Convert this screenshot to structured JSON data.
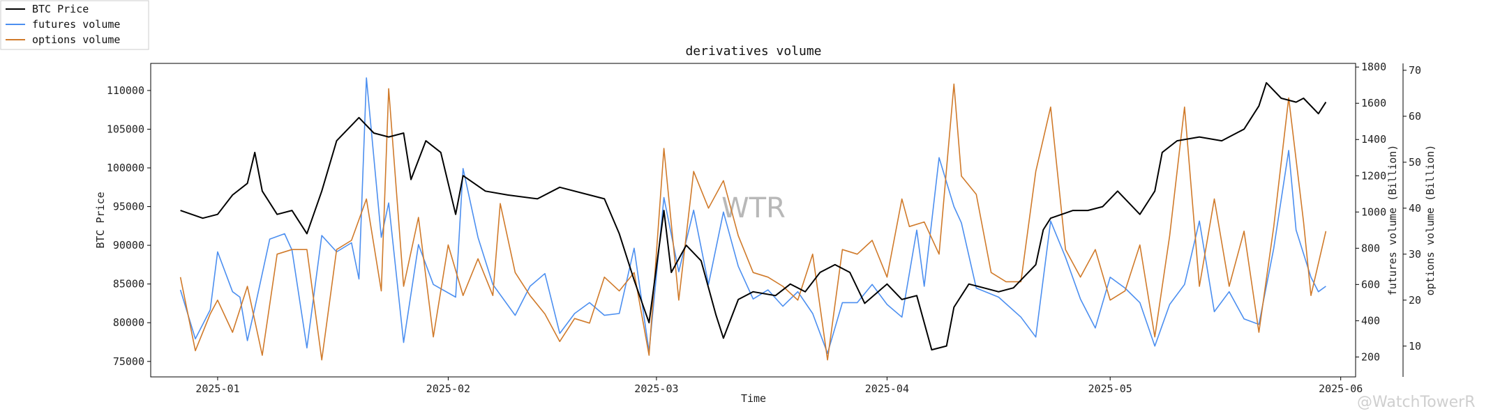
{
  "chart_data": {
    "type": "line",
    "title": "derivatives volume",
    "xlabel": "Time",
    "ylabel_left": "BTC Price",
    "ylabel_right1": "futures volume (Billion)",
    "ylabel_right2": "options volume (Billion)",
    "x_tick_labels": [
      "2025-01",
      "2025-02",
      "2025-03",
      "2025-04",
      "2025-05",
      "2025-06"
    ],
    "x_tick_dates": [
      "2025-01-01",
      "2025-02-01",
      "2025-03-01",
      "2025-04-01",
      "2025-05-01",
      "2025-06-01"
    ],
    "xlim": [
      "2024-12-23",
      "2025-06-03"
    ],
    "left_axis": {
      "ylim": [
        73000,
        113500
      ],
      "ticks": [
        "75000",
        "80000",
        "85000",
        "90000",
        "95000",
        "100000",
        "105000",
        "110000"
      ]
    },
    "right_axis1": {
      "ylim": [
        90,
        1820
      ],
      "ticks": [
        "200",
        "400",
        "600",
        "800",
        "1000",
        "1200",
        "1400",
        "1600",
        "1800"
      ]
    },
    "right_axis2": {
      "ylim": [
        3.3,
        71.5
      ],
      "ticks": [
        "10",
        "20",
        "30",
        "40",
        "50",
        "60",
        "70"
      ]
    },
    "legend": {
      "placement": "top-left",
      "entries": [
        "BTC Price",
        "futures volume",
        "options volume"
      ]
    },
    "series": [
      {
        "name": "BTC Price",
        "axis": "left",
        "color": "#000000",
        "points": [
          [
            "2024-12-27",
            94500
          ],
          [
            "2024-12-30",
            93500
          ],
          [
            "2025-01-01",
            94000
          ],
          [
            "2025-01-03",
            96500
          ],
          [
            "2025-01-05",
            98000
          ],
          [
            "2025-01-06",
            102000
          ],
          [
            "2025-01-07",
            97000
          ],
          [
            "2025-01-09",
            94000
          ],
          [
            "2025-01-11",
            94500
          ],
          [
            "2025-01-13",
            91500
          ],
          [
            "2025-01-15",
            97000
          ],
          [
            "2025-01-17",
            103500
          ],
          [
            "2025-01-20",
            106500
          ],
          [
            "2025-01-22",
            104500
          ],
          [
            "2025-01-24",
            104000
          ],
          [
            "2025-01-26",
            104500
          ],
          [
            "2025-01-27",
            98500
          ],
          [
            "2025-01-29",
            103500
          ],
          [
            "2025-01-31",
            102000
          ],
          [
            "2025-02-02",
            94000
          ],
          [
            "2025-02-03",
            99000
          ],
          [
            "2025-02-06",
            97000
          ],
          [
            "2025-02-09",
            96500
          ],
          [
            "2025-02-13",
            96000
          ],
          [
            "2025-02-16",
            97500
          ],
          [
            "2025-02-20",
            96500
          ],
          [
            "2025-02-22",
            96000
          ],
          [
            "2025-02-24",
            91500
          ],
          [
            "2025-02-26",
            85500
          ],
          [
            "2025-02-28",
            80000
          ],
          [
            "2025-03-02",
            94500
          ],
          [
            "2025-03-03",
            86500
          ],
          [
            "2025-03-05",
            90000
          ],
          [
            "2025-03-07",
            88000
          ],
          [
            "2025-03-09",
            81000
          ],
          [
            "2025-03-10",
            78000
          ],
          [
            "2025-03-12",
            83000
          ],
          [
            "2025-03-14",
            84000
          ],
          [
            "2025-03-17",
            83500
          ],
          [
            "2025-03-19",
            85000
          ],
          [
            "2025-03-21",
            84000
          ],
          [
            "2025-03-23",
            86500
          ],
          [
            "2025-03-25",
            87500
          ],
          [
            "2025-03-27",
            86500
          ],
          [
            "2025-03-29",
            82500
          ],
          [
            "2025-04-01",
            85000
          ],
          [
            "2025-04-03",
            83000
          ],
          [
            "2025-04-05",
            83500
          ],
          [
            "2025-04-07",
            76500
          ],
          [
            "2025-04-09",
            77000
          ],
          [
            "2025-04-10",
            82000
          ],
          [
            "2025-04-12",
            85000
          ],
          [
            "2025-04-14",
            84500
          ],
          [
            "2025-04-16",
            84000
          ],
          [
            "2025-04-18",
            84500
          ],
          [
            "2025-04-21",
            87500
          ],
          [
            "2025-04-22",
            92000
          ],
          [
            "2025-04-23",
            93500
          ],
          [
            "2025-04-26",
            94500
          ],
          [
            "2025-04-28",
            94500
          ],
          [
            "2025-04-30",
            95000
          ],
          [
            "2025-05-02",
            97000
          ],
          [
            "2025-05-05",
            94000
          ],
          [
            "2025-05-07",
            97000
          ],
          [
            "2025-05-08",
            102000
          ],
          [
            "2025-05-10",
            103500
          ],
          [
            "2025-05-13",
            104000
          ],
          [
            "2025-05-16",
            103500
          ],
          [
            "2025-05-19",
            105000
          ],
          [
            "2025-05-21",
            108000
          ],
          [
            "2025-05-22",
            111000
          ],
          [
            "2025-05-24",
            109000
          ],
          [
            "2025-05-26",
            108500
          ],
          [
            "2025-05-27",
            109000
          ],
          [
            "2025-05-29",
            107000
          ],
          [
            "2025-05-30",
            108500
          ]
        ]
      },
      {
        "name": "futures volume",
        "axis": "right1",
        "color": "#4c8ff0",
        "points": [
          [
            "2024-12-27",
            570
          ],
          [
            "2024-12-29",
            300
          ],
          [
            "2024-12-31",
            460
          ],
          [
            "2025-01-01",
            780
          ],
          [
            "2025-01-03",
            560
          ],
          [
            "2025-01-04",
            530
          ],
          [
            "2025-01-05",
            290
          ],
          [
            "2025-01-06",
            470
          ],
          [
            "2025-01-08",
            850
          ],
          [
            "2025-01-10",
            880
          ],
          [
            "2025-01-11",
            790
          ],
          [
            "2025-01-13",
            250
          ],
          [
            "2025-01-15",
            870
          ],
          [
            "2025-01-17",
            780
          ],
          [
            "2025-01-19",
            830
          ],
          [
            "2025-01-20",
            630
          ],
          [
            "2025-01-21",
            1740
          ],
          [
            "2025-01-23",
            860
          ],
          [
            "2025-01-24",
            1050
          ],
          [
            "2025-01-26",
            280
          ],
          [
            "2025-01-28",
            820
          ],
          [
            "2025-01-30",
            600
          ],
          [
            "2025-02-02",
            530
          ],
          [
            "2025-02-03",
            1240
          ],
          [
            "2025-02-05",
            860
          ],
          [
            "2025-02-07",
            600
          ],
          [
            "2025-02-10",
            430
          ],
          [
            "2025-02-12",
            590
          ],
          [
            "2025-02-14",
            660
          ],
          [
            "2025-02-16",
            330
          ],
          [
            "2025-02-18",
            440
          ],
          [
            "2025-02-20",
            500
          ],
          [
            "2025-02-22",
            430
          ],
          [
            "2025-02-24",
            440
          ],
          [
            "2025-02-26",
            800
          ],
          [
            "2025-02-28",
            230
          ],
          [
            "2025-03-02",
            1080
          ],
          [
            "2025-03-04",
            670
          ],
          [
            "2025-03-06",
            1010
          ],
          [
            "2025-03-08",
            600
          ],
          [
            "2025-03-10",
            1000
          ],
          [
            "2025-03-12",
            700
          ],
          [
            "2025-03-14",
            520
          ],
          [
            "2025-03-16",
            570
          ],
          [
            "2025-03-18",
            480
          ],
          [
            "2025-03-20",
            560
          ],
          [
            "2025-03-22",
            440
          ],
          [
            "2025-03-24",
            220
          ],
          [
            "2025-03-26",
            500
          ],
          [
            "2025-03-28",
            500
          ],
          [
            "2025-03-30",
            600
          ],
          [
            "2025-04-01",
            490
          ],
          [
            "2025-04-03",
            420
          ],
          [
            "2025-04-05",
            900
          ],
          [
            "2025-04-06",
            590
          ],
          [
            "2025-04-08",
            1300
          ],
          [
            "2025-04-10",
            1030
          ],
          [
            "2025-04-11",
            940
          ],
          [
            "2025-04-13",
            580
          ],
          [
            "2025-04-16",
            530
          ],
          [
            "2025-04-19",
            420
          ],
          [
            "2025-04-21",
            310
          ],
          [
            "2025-04-23",
            950
          ],
          [
            "2025-04-25",
            750
          ],
          [
            "2025-04-27",
            520
          ],
          [
            "2025-04-29",
            360
          ],
          [
            "2025-05-01",
            640
          ],
          [
            "2025-05-03",
            580
          ],
          [
            "2025-05-05",
            500
          ],
          [
            "2025-05-07",
            260
          ],
          [
            "2025-05-09",
            490
          ],
          [
            "2025-05-11",
            600
          ],
          [
            "2025-05-13",
            950
          ],
          [
            "2025-05-15",
            450
          ],
          [
            "2025-05-17",
            560
          ],
          [
            "2025-05-19",
            410
          ],
          [
            "2025-05-21",
            380
          ],
          [
            "2025-05-23",
            800
          ],
          [
            "2025-05-25",
            1340
          ],
          [
            "2025-05-26",
            900
          ],
          [
            "2025-05-28",
            640
          ],
          [
            "2025-05-29",
            560
          ],
          [
            "2025-05-30",
            590
          ]
        ]
      },
      {
        "name": "options volume",
        "axis": "right2",
        "color": "#d07a2a",
        "points": [
          [
            "2024-12-27",
            25
          ],
          [
            "2024-12-29",
            9
          ],
          [
            "2024-12-31",
            17
          ],
          [
            "2025-01-01",
            20
          ],
          [
            "2025-01-03",
            13
          ],
          [
            "2025-01-05",
            23
          ],
          [
            "2025-01-07",
            8
          ],
          [
            "2025-01-09",
            30
          ],
          [
            "2025-01-11",
            31
          ],
          [
            "2025-01-13",
            31
          ],
          [
            "2025-01-15",
            7
          ],
          [
            "2025-01-17",
            31
          ],
          [
            "2025-01-19",
            33
          ],
          [
            "2025-01-21",
            42
          ],
          [
            "2025-01-23",
            22
          ],
          [
            "2025-01-24",
            66
          ],
          [
            "2025-01-26",
            23
          ],
          [
            "2025-01-28",
            38
          ],
          [
            "2025-01-30",
            12
          ],
          [
            "2025-02-01",
            32
          ],
          [
            "2025-02-03",
            21
          ],
          [
            "2025-02-05",
            29
          ],
          [
            "2025-02-07",
            21
          ],
          [
            "2025-02-08",
            41
          ],
          [
            "2025-02-10",
            26
          ],
          [
            "2025-02-12",
            21
          ],
          [
            "2025-02-14",
            17
          ],
          [
            "2025-02-16",
            11
          ],
          [
            "2025-02-18",
            16
          ],
          [
            "2025-02-20",
            15
          ],
          [
            "2025-02-22",
            25
          ],
          [
            "2025-02-24",
            22
          ],
          [
            "2025-02-26",
            26
          ],
          [
            "2025-02-28",
            8
          ],
          [
            "2025-03-02",
            53
          ],
          [
            "2025-03-04",
            20
          ],
          [
            "2025-03-06",
            48
          ],
          [
            "2025-03-08",
            40
          ],
          [
            "2025-03-10",
            46
          ],
          [
            "2025-03-12",
            34
          ],
          [
            "2025-03-14",
            26
          ],
          [
            "2025-03-16",
            25
          ],
          [
            "2025-03-18",
            23
          ],
          [
            "2025-03-20",
            20
          ],
          [
            "2025-03-22",
            30
          ],
          [
            "2025-03-24",
            7
          ],
          [
            "2025-03-26",
            31
          ],
          [
            "2025-03-28",
            30
          ],
          [
            "2025-03-30",
            33
          ],
          [
            "2025-04-01",
            25
          ],
          [
            "2025-04-03",
            42
          ],
          [
            "2025-04-04",
            36
          ],
          [
            "2025-04-06",
            37
          ],
          [
            "2025-04-08",
            30
          ],
          [
            "2025-04-10",
            67
          ],
          [
            "2025-04-11",
            47
          ],
          [
            "2025-04-13",
            43
          ],
          [
            "2025-04-15",
            26
          ],
          [
            "2025-04-17",
            24
          ],
          [
            "2025-04-19",
            24
          ],
          [
            "2025-04-21",
            48
          ],
          [
            "2025-04-23",
            62
          ],
          [
            "2025-04-25",
            31
          ],
          [
            "2025-04-27",
            25
          ],
          [
            "2025-04-29",
            31
          ],
          [
            "2025-05-01",
            20
          ],
          [
            "2025-05-03",
            22
          ],
          [
            "2025-05-05",
            32
          ],
          [
            "2025-05-07",
            12
          ],
          [
            "2025-05-09",
            34
          ],
          [
            "2025-05-11",
            62
          ],
          [
            "2025-05-13",
            23
          ],
          [
            "2025-05-15",
            42
          ],
          [
            "2025-05-17",
            23
          ],
          [
            "2025-05-19",
            35
          ],
          [
            "2025-05-21",
            13
          ],
          [
            "2025-05-23",
            36
          ],
          [
            "2025-05-25",
            64
          ],
          [
            "2025-05-27",
            37
          ],
          [
            "2025-05-28",
            21
          ],
          [
            "2025-05-30",
            35
          ]
        ]
      }
    ]
  },
  "watermark": "WTR",
  "footer_watermark": "@WatchTowerR"
}
